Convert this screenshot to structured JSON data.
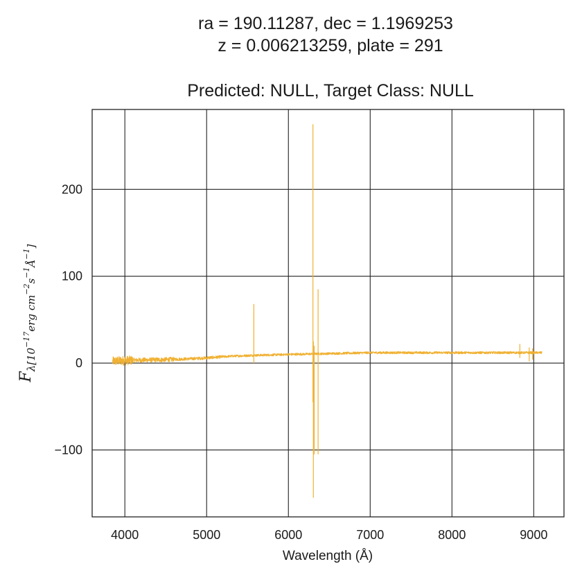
{
  "chart_data": {
    "type": "line",
    "title_lines": [
      "ra = 190.11287, dec = 1.1969253",
      "z = 0.006213259, plate = 291",
      "Predicted: NULL, Target Class: NULL"
    ],
    "xlabel": "Wavelength (Å)",
    "ylabel": {
      "main": "F",
      "sub": "λ[10",
      "exp1": "−17",
      "mid1": "erg cm",
      "exp2": "−2",
      "mid2": "s",
      "exp3": "−1",
      "mid3": "Å",
      "exp4": "−1",
      "end": "]"
    },
    "xlim": [
      3600,
      9370
    ],
    "ylim": [
      -177,
      292
    ],
    "xticks": [
      4000,
      5000,
      6000,
      7000,
      8000,
      9000
    ],
    "xtick_labels": [
      "4000",
      "5000",
      "6000",
      "7000",
      "8000",
      "9000"
    ],
    "yticks": [
      -100,
      0,
      100,
      200
    ],
    "ytick_labels": [
      "−100",
      "0",
      "100",
      "200"
    ],
    "grid": true,
    "line_color": "#f0b030",
    "series": [
      {
        "continuum": [
          [
            3850,
            2
          ],
          [
            3900,
            2.5
          ],
          [
            4000,
            3
          ],
          [
            4200,
            3.5
          ],
          [
            4500,
            4
          ],
          [
            4800,
            5
          ],
          [
            5000,
            6
          ],
          [
            5300,
            8
          ],
          [
            5600,
            9
          ],
          [
            6000,
            10
          ],
          [
            6500,
            11
          ],
          [
            7000,
            12
          ],
          [
            7500,
            12
          ],
          [
            8000,
            12
          ],
          [
            8500,
            12
          ],
          [
            9100,
            12
          ]
        ],
        "spikes": [
          {
            "x": 5577,
            "top": 68,
            "bottom": 0
          },
          {
            "x": 6300,
            "top": 275,
            "bottom": -45
          },
          {
            "x": 6305,
            "top": 25,
            "bottom": -155
          },
          {
            "x": 6315,
            "top": 20,
            "bottom": -105
          },
          {
            "x": 6363,
            "top": 85,
            "bottom": -105
          },
          {
            "x": 8830,
            "top": 22,
            "bottom": 6
          },
          {
            "x": 8945,
            "top": 18,
            "bottom": 2
          },
          {
            "x": 8985,
            "top": 17,
            "bottom": 4
          }
        ]
      }
    ]
  }
}
